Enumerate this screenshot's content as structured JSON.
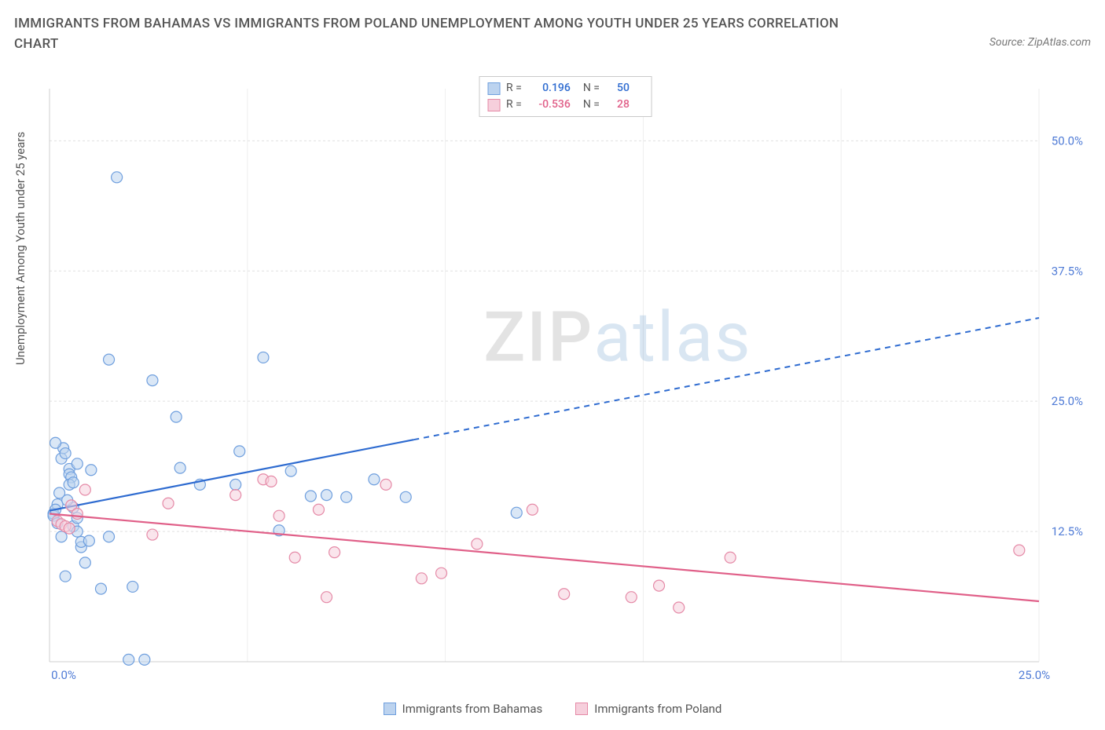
{
  "title": "IMMIGRANTS FROM BAHAMAS VS IMMIGRANTS FROM POLAND UNEMPLOYMENT AMONG YOUTH UNDER 25 YEARS CORRELATION CHART",
  "source": "Source: ZipAtlas.com",
  "ylabel": "Unemployment Among Youth under 25 years",
  "watermark_a": "ZIP",
  "watermark_b": "atlas",
  "chart": {
    "type": "scatter",
    "xlim": [
      0,
      25
    ],
    "ylim": [
      0,
      55
    ],
    "x_tick_min": "0.0%",
    "x_tick_max": "25.0%",
    "y_ticks": [
      {
        "v": 12.5,
        "label": "12.5%"
      },
      {
        "v": 25.0,
        "label": "25.0%"
      },
      {
        "v": 37.5,
        "label": "37.5%"
      },
      {
        "v": 50.0,
        "label": "50.0%"
      }
    ],
    "x_grid_at": [
      0,
      5,
      10,
      15,
      20,
      25
    ],
    "background_color": "#ffffff",
    "grid_color": "#e0e0e0",
    "axis_color": "#cfcfcf",
    "marker_radius": 7,
    "marker_stroke_width": 1.2,
    "series": [
      {
        "name": "Immigrants from Bahamas",
        "color_stroke": "#6f9fde",
        "color_fill": "#bcd3ef",
        "color_fill_opacity": 0.55,
        "line_color": "#2e6bd0",
        "R": "0.196",
        "N": "50",
        "trend": {
          "x1": 0,
          "y1": 14.5,
          "x2": 25,
          "y2": 33.0,
          "solid_until_x": 9.2
        },
        "points": [
          [
            0.1,
            14.2
          ],
          [
            0.1,
            14.0
          ],
          [
            0.2,
            13.3
          ],
          [
            0.2,
            15.1
          ],
          [
            0.15,
            14.6
          ],
          [
            0.3,
            12.0
          ],
          [
            0.3,
            19.5
          ],
          [
            0.35,
            20.5
          ],
          [
            0.15,
            21.0
          ],
          [
            0.4,
            20.0
          ],
          [
            0.5,
            18.5
          ],
          [
            0.5,
            18.0
          ],
          [
            0.55,
            17.7
          ],
          [
            0.5,
            17.0
          ],
          [
            0.6,
            17.2
          ],
          [
            0.6,
            14.8
          ],
          [
            0.6,
            13.0
          ],
          [
            0.7,
            12.5
          ],
          [
            0.7,
            13.8
          ],
          [
            0.7,
            19.0
          ],
          [
            0.8,
            11.0
          ],
          [
            0.8,
            11.5
          ],
          [
            0.9,
            9.5
          ],
          [
            1.0,
            11.6
          ],
          [
            1.05,
            18.4
          ],
          [
            0.4,
            8.2
          ],
          [
            1.3,
            7.0
          ],
          [
            1.5,
            12.0
          ],
          [
            1.5,
            29.0
          ],
          [
            2.0,
            0.2
          ],
          [
            2.4,
            0.2
          ],
          [
            2.1,
            7.2
          ],
          [
            1.7,
            46.5
          ],
          [
            2.6,
            27.0
          ],
          [
            3.2,
            23.5
          ],
          [
            3.3,
            18.6
          ],
          [
            3.8,
            17.0
          ],
          [
            4.7,
            17.0
          ],
          [
            4.8,
            20.2
          ],
          [
            5.4,
            29.2
          ],
          [
            5.8,
            12.6
          ],
          [
            6.1,
            18.3
          ],
          [
            6.6,
            15.9
          ],
          [
            7.0,
            16.0
          ],
          [
            7.5,
            15.8
          ],
          [
            8.2,
            17.5
          ],
          [
            9.0,
            15.8
          ],
          [
            11.8,
            14.3
          ],
          [
            0.25,
            16.2
          ],
          [
            0.45,
            15.5
          ]
        ]
      },
      {
        "name": "Immigrants from Poland",
        "color_stroke": "#e58aa7",
        "color_fill": "#f6cfdc",
        "color_fill_opacity": 0.55,
        "line_color": "#e05f88",
        "R": "-0.536",
        "N": "28",
        "trend": {
          "x1": 0,
          "y1": 14.2,
          "x2": 25,
          "y2": 5.8,
          "solid_until_x": 25
        },
        "points": [
          [
            0.2,
            13.5
          ],
          [
            0.3,
            13.2
          ],
          [
            0.4,
            13.0
          ],
          [
            0.5,
            12.8
          ],
          [
            0.55,
            15.0
          ],
          [
            0.7,
            14.2
          ],
          [
            0.9,
            16.5
          ],
          [
            2.6,
            12.2
          ],
          [
            3.0,
            15.2
          ],
          [
            4.7,
            16.0
          ],
          [
            5.4,
            17.5
          ],
          [
            5.6,
            17.3
          ],
          [
            5.8,
            14.0
          ],
          [
            6.2,
            10.0
          ],
          [
            6.8,
            14.6
          ],
          [
            7.0,
            6.2
          ],
          [
            7.2,
            10.5
          ],
          [
            8.5,
            17.0
          ],
          [
            9.4,
            8.0
          ],
          [
            9.9,
            8.5
          ],
          [
            10.8,
            11.3
          ],
          [
            12.2,
            14.6
          ],
          [
            13.0,
            6.5
          ],
          [
            14.7,
            6.2
          ],
          [
            15.4,
            7.3
          ],
          [
            15.9,
            5.2
          ],
          [
            17.2,
            10.0
          ],
          [
            24.5,
            10.7
          ]
        ]
      }
    ]
  },
  "legend_top_labels": {
    "R": "R =",
    "N": "N ="
  },
  "legend_bottom": [
    {
      "label": "Immigrants from Bahamas",
      "stroke": "#6f9fde",
      "fill": "#bcd3ef"
    },
    {
      "label": "Immigrants from Poland",
      "stroke": "#e58aa7",
      "fill": "#f6cfdc"
    }
  ]
}
